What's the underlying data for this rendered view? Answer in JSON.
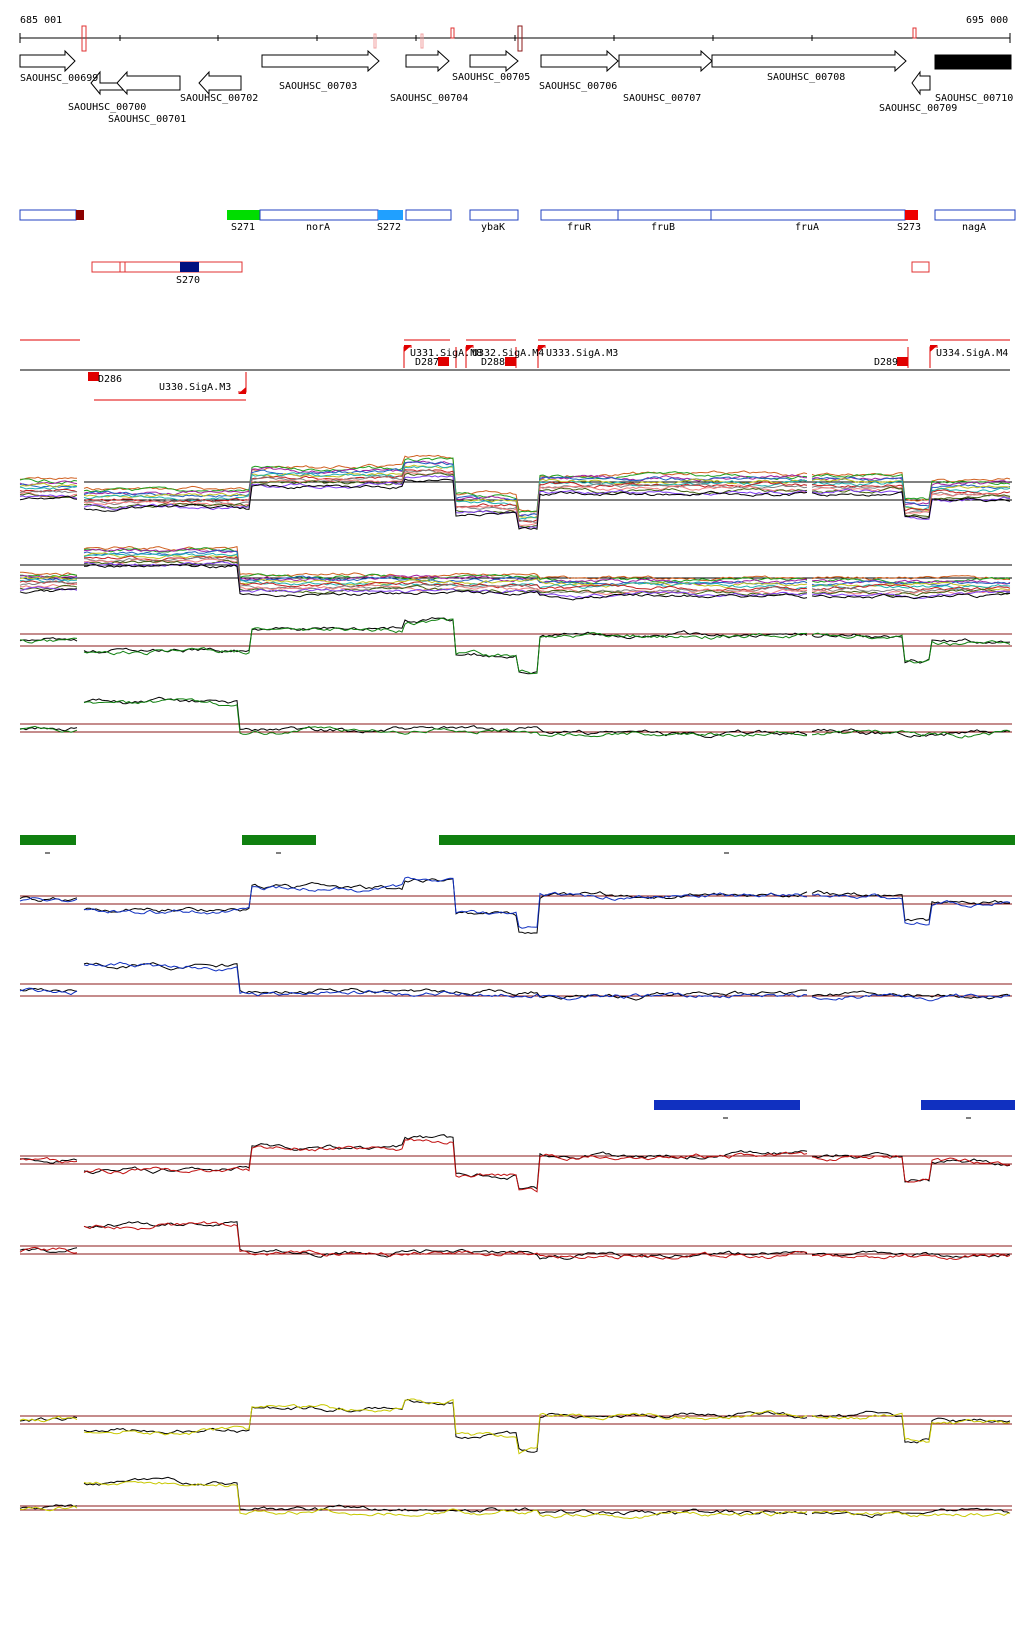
{
  "ruler": {
    "start_label": "685 001",
    "end_label": "695 000"
  },
  "genes": [
    {
      "id": "g00699",
      "label": "SAOUHSC_00699",
      "strand": "+"
    },
    {
      "id": "g00700",
      "label": "SAOUHSC_00700",
      "strand": "-"
    },
    {
      "id": "g00701",
      "label": "SAOUHSC_00701",
      "strand": "-"
    },
    {
      "id": "g00702",
      "label": "SAOUHSC_00702",
      "strand": "-"
    },
    {
      "id": "g00703",
      "label": "SAOUHSC_00703",
      "strand": "+"
    },
    {
      "id": "g00704",
      "label": "SAOUHSC_00704",
      "strand": "+"
    },
    {
      "id": "g00705",
      "label": "SAOUHSC_00705",
      "strand": "+"
    },
    {
      "id": "g00706",
      "label": "SAOUHSC_00706",
      "strand": "+"
    },
    {
      "id": "g00707",
      "label": "SAOUHSC_00707",
      "strand": "+"
    },
    {
      "id": "g00708",
      "label": "SAOUHSC_00708",
      "strand": "+"
    },
    {
      "id": "g00709",
      "label": "SAOUHSC_00709",
      "strand": "-"
    },
    {
      "id": "g00710",
      "label": "SAOUHSC_00710",
      "strand": "+"
    }
  ],
  "segments_plus": [
    "S271",
    "norA",
    "S272",
    "ybaK",
    "fruR",
    "fruB",
    "fruA",
    "S273",
    "nagA"
  ],
  "segments_minus": [
    "S270"
  ],
  "features": [
    "U331.SigA.M8",
    "U332.SigA.M4",
    "U333.SigA.M3",
    "U334.SigA.M4",
    "D287",
    "D288",
    "D289",
    "D286",
    "U330.SigA.M3"
  ],
  "colors": {
    "segment_outline": "#2040c0",
    "segment_minus_outline": "#e03030",
    "feature_red": "#e00000",
    "condition_green": "#108010",
    "condition_blue": "#1030c0",
    "condition_red": "#c01010",
    "condition_yellow": "#c8c800",
    "threshold_line": "#8b1a1a",
    "dark_marker": "#8b0000",
    "navy_marker": "#001080",
    "bright_green_marker": "#00dd00",
    "sky_marker": "#20a0ff"
  }
}
